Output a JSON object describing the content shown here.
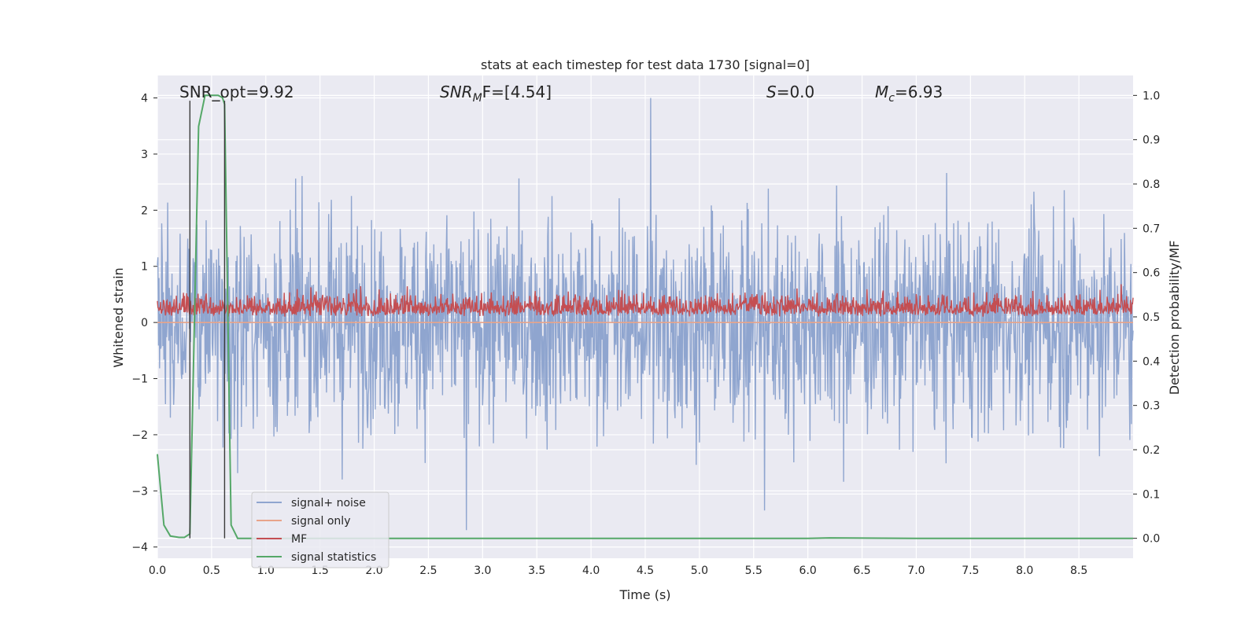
{
  "chart_data": {
    "type": "line",
    "title": "stats at each timestep for test data 1730 [signal=0]",
    "xlabel": "Time (s)",
    "ylabel": "Whitened strain",
    "y2label": "Detection probability/MF",
    "xlim": [
      0,
      9.0
    ],
    "ylim": [
      -4.2,
      4.4
    ],
    "y2lim": [
      -0.045,
      1.045
    ],
    "xticks": [
      "0.0",
      "0.5",
      "1.0",
      "1.5",
      "2.0",
      "2.5",
      "3.0",
      "3.5",
      "4.0",
      "4.5",
      "5.0",
      "5.5",
      "6.0",
      "6.5",
      "7.0",
      "7.5",
      "8.0",
      "8.5"
    ],
    "yticks": [
      "4",
      "3",
      "2",
      "1",
      "0",
      "−1",
      "−2",
      "−3",
      "−4"
    ],
    "y2ticks": [
      "1.0",
      "0.9",
      "0.8",
      "0.7",
      "0.6",
      "0.5",
      "0.4",
      "0.3",
      "0.2",
      "0.1",
      "0.0"
    ],
    "grid": true,
    "legend_position": "lower-left",
    "annotations": {
      "snr_opt": "SNR_opt=9.92",
      "snr_mf_sym": "SNR",
      "snr_mf_sub": "M",
      "snr_mf_rest": "F=[4.54]",
      "s_sym": "S",
      "s_rest": "=0.0",
      "mc_sym": "M",
      "mc_sub": "c",
      "mc_rest": "=6.93"
    },
    "vertical_markers": [
      0.3,
      0.62
    ],
    "series": [
      {
        "name": "signal+ noise",
        "color": "#8fa5cf",
        "axis": "left",
        "kind": "noise",
        "amplitude_sigma": 0.95,
        "x_range": [
          0,
          9.0
        ],
        "notable_peaks": [
          {
            "x": 4.55,
            "y": 4.0
          },
          {
            "x": 2.85,
            "y": -3.7
          },
          {
            "x": 5.6,
            "y": -3.35
          }
        ]
      },
      {
        "name": "signal only",
        "color": "#e8a48a",
        "axis": "left",
        "values_constant": 0.0
      },
      {
        "name": "MF",
        "color": "#c44e52",
        "axis": "right",
        "kind": "noise",
        "baseline": 0.5,
        "range_typical": [
          0.5,
          0.6
        ],
        "max": 0.61,
        "x_range": [
          0,
          9.0
        ]
      },
      {
        "name": "signal statistics",
        "color": "#55a868",
        "axis": "right",
        "x": [
          0.0,
          0.06,
          0.12,
          0.2,
          0.25,
          0.3,
          0.38,
          0.44,
          0.5,
          0.56,
          0.6,
          0.62,
          0.68,
          0.74,
          1.0,
          6.0,
          6.2,
          7.0,
          9.0
        ],
        "y": [
          0.19,
          0.03,
          0.005,
          0.002,
          0.002,
          0.01,
          0.93,
          1.0,
          1.0,
          1.0,
          0.995,
          0.98,
          0.03,
          0.0,
          0.0,
          0.0,
          0.001,
          0.0,
          0.0
        ]
      }
    ]
  }
}
